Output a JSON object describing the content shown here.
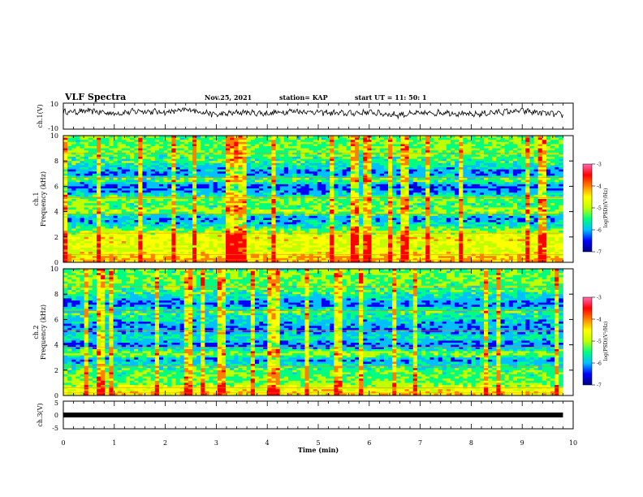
{
  "header": {
    "title": "VLF Spectra",
    "date": "Nov.25, 2021",
    "station": "station= KAP",
    "start": "start  UT =   11: 50: 1"
  },
  "colors": {
    "colormap": [
      "#000080",
      "#0000ff",
      "#00c0ff",
      "#00ff80",
      "#c0ff00",
      "#ffff00",
      "#ff8000",
      "#ff0000",
      "#ff69b4"
    ],
    "trace": "#000000",
    "background": "#ffffff"
  },
  "chart_data": [
    {
      "type": "line",
      "panel": "ch1-waveform",
      "ylabel": "ch.1(V)",
      "ylim": [
        -10,
        10
      ],
      "y_ticks": [
        "10",
        "-10"
      ],
      "xlim": [
        0,
        10
      ],
      "trend_x": [
        0,
        0.5,
        1,
        1.5,
        2,
        2.5,
        3,
        3.5,
        4,
        4.5,
        5,
        5.5,
        6,
        6.5,
        7,
        7.5,
        8,
        8.5,
        9,
        9.5,
        9.8
      ],
      "trend_y": [
        3,
        4,
        2,
        4,
        3,
        5,
        1,
        3,
        2,
        4,
        3,
        2,
        3,
        1,
        2,
        3,
        1,
        3,
        4,
        2,
        1
      ]
    },
    {
      "type": "heatmap",
      "panel": "ch1-spectrogram",
      "ylabel": "ch.1 Frequency (kHz)",
      "xlim": [
        0,
        10
      ],
      "ylim": [
        0,
        10
      ],
      "y_ticks": [
        "0",
        "2",
        "4",
        "6",
        "8",
        "10"
      ],
      "colorbar": {
        "label": "log(PSD)(V²/Hz)",
        "range": [
          -7,
          -3
        ],
        "ticks": [
          "-3",
          "-4",
          "-5",
          "-6",
          "-7"
        ]
      },
      "band_profile": [
        {
          "f": 0.3,
          "level": -4.0
        },
        {
          "f": 1.0,
          "level": -4.6
        },
        {
          "f": 2.0,
          "level": -4.3
        },
        {
          "f": 3.0,
          "level": -5.6
        },
        {
          "f": 3.5,
          "level": -5.9
        },
        {
          "f": 4.0,
          "level": -4.8
        },
        {
          "f": 4.5,
          "level": -5.2
        },
        {
          "f": 5.0,
          "level": -4.9
        },
        {
          "f": 5.5,
          "level": -5.8
        },
        {
          "f": 6.0,
          "level": -6.2
        },
        {
          "f": 6.5,
          "level": -5.0
        },
        {
          "f": 7.0,
          "level": -6.0
        },
        {
          "f": 8.0,
          "level": -5.2
        },
        {
          "f": 9.0,
          "level": -5.0
        },
        {
          "f": 10.0,
          "level": -5.1
        }
      ]
    },
    {
      "type": "heatmap",
      "panel": "ch2-spectrogram",
      "ylabel": "ch.2 Frequency (kHz)",
      "xlim": [
        0,
        10
      ],
      "ylim": [
        0,
        10
      ],
      "y_ticks": [
        "0",
        "2",
        "4",
        "6",
        "8",
        "10"
      ],
      "colorbar": {
        "label": "log(PSD)(V²/Hz)",
        "range": [
          -7,
          -3
        ],
        "ticks": [
          "-3",
          "-4",
          "-5",
          "-6",
          "-7"
        ]
      },
      "band_profile": [
        {
          "f": 0.3,
          "level": -4.2
        },
        {
          "f": 1.0,
          "level": -5.0
        },
        {
          "f": 2.0,
          "level": -5.1
        },
        {
          "f": 2.8,
          "level": -5.9
        },
        {
          "f": 3.3,
          "level": -4.8
        },
        {
          "f": 4.0,
          "level": -6.1
        },
        {
          "f": 4.6,
          "level": -5.4
        },
        {
          "f": 5.2,
          "level": -6.0
        },
        {
          "f": 5.8,
          "level": -5.7
        },
        {
          "f": 6.6,
          "level": -5.2
        },
        {
          "f": 7.2,
          "level": -6.1
        },
        {
          "f": 8.0,
          "level": -5.3
        },
        {
          "f": 9.0,
          "level": -5.0
        },
        {
          "f": 10.0,
          "level": -5.1
        }
      ]
    },
    {
      "type": "line",
      "panel": "ch3-waveform",
      "ylabel": "ch.3(V)",
      "ylim": [
        -5,
        5
      ],
      "y_ticks": [
        "5",
        "0",
        "-5"
      ],
      "xlim": [
        0,
        10
      ],
      "x": [
        0,
        9.8
      ],
      "y": [
        0,
        0
      ]
    }
  ],
  "x_axis": {
    "label": "Time  (min)",
    "ticks": [
      "0",
      "1",
      "2",
      "3",
      "4",
      "5",
      "6",
      "7",
      "8",
      "9",
      "10"
    ]
  }
}
